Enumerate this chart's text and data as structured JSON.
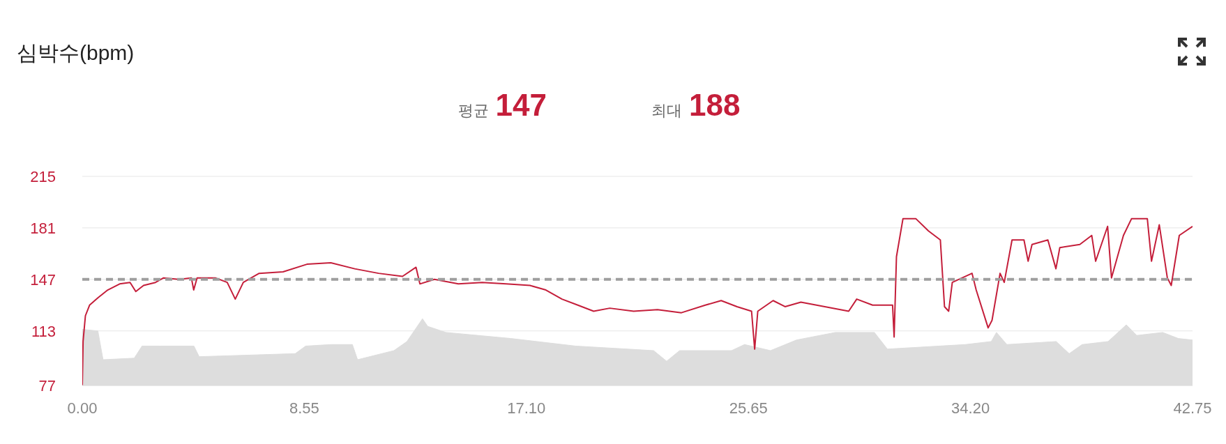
{
  "chart_data": {
    "type": "line",
    "title": "심박수(bpm)",
    "annotations": [
      "평균",
      "147",
      "최대",
      "188"
    ],
    "xlim": [
      0,
      42.75
    ],
    "xticks": [
      {
        "value": 0,
        "label": "0.00"
      },
      8.55,
      {
        "value": 17.1,
        "label": "17.10"
      },
      25.65,
      {
        "value": 34.2,
        "label": "34.20"
      },
      42.75
    ],
    "ylim": [
      77,
      215
    ],
    "yticks": [
      77,
      113,
      147,
      181,
      215
    ],
    "grid": "y",
    "marker": "none",
    "ref_lines": [
      {
        "axis": "y",
        "value": 147,
        "color": "#9e9e9e",
        "line_style": "dashed"
      }
    ],
    "series": [
      {
        "type": "area",
        "color": "#dddddd",
        "x": [
          0,
          0.6,
          0.8,
          2.0,
          2.3,
          3.0,
          4.3,
          4.5,
          8.2,
          8.6,
          9.6,
          10.4,
          10.6,
          12.0,
          12.5,
          13.1,
          13.3,
          14.0,
          16.5,
          19.0,
          21.0,
          22.0,
          22.5,
          23.0,
          25.0,
          25.5,
          26.5,
          27.5,
          29.0,
          30.5,
          31.0,
          34.0,
          35.0,
          35.2,
          35.6,
          37.5,
          38.0,
          38.5,
          39.5,
          40.2,
          40.6,
          41.6,
          42.2,
          42.75
        ],
        "values": [
          114,
          113,
          94,
          95,
          103,
          103,
          103,
          96,
          98,
          103,
          104,
          104,
          94,
          100,
          106,
          121,
          116,
          112,
          108,
          103,
          101,
          100,
          93,
          100,
          100,
          104,
          100,
          107,
          112,
          112,
          101,
          104,
          106,
          112,
          104,
          106,
          98,
          104,
          106,
          117,
          110,
          112,
          108,
          107
        ]
      },
      {
        "color": "#c41e3a",
        "line_style": "solid",
        "x": [
          0,
          0.03,
          0.12,
          0.28,
          0.61,
          0.98,
          1.44,
          1.84,
          2.06,
          2.36,
          2.82,
          3.13,
          3.74,
          4.2,
          4.29,
          4.42,
          5.12,
          5.58,
          5.89,
          6.2,
          6.81,
          7.73,
          8.65,
          9.57,
          10.49,
          11.41,
          12.33,
          12.85,
          13.0,
          13.56,
          14.48,
          15.4,
          16.32,
          17.24,
          17.85,
          18.47,
          19.08,
          19.69,
          20.31,
          21.23,
          22.15,
          23.07,
          23.99,
          24.6,
          25.21,
          25.77,
          25.89,
          26.01,
          26.6,
          27.06,
          27.67,
          28.59,
          29.51,
          29.82,
          30.43,
          31.2,
          31.26,
          31.35,
          31.6,
          32.1,
          32.58,
          33.04,
          33.2,
          33.36,
          33.5,
          34.26,
          34.42,
          34.88,
          35.03,
          35.34,
          35.5,
          35.8,
          36.26,
          36.42,
          36.57,
          37.18,
          37.49,
          37.64,
          38.41,
          38.87,
          39.02,
          39.48,
          39.63,
          40.09,
          40.4,
          41.01,
          41.17,
          41.47,
          41.78,
          41.93,
          42.24,
          42.75
        ],
        "values": [
          77,
          106,
          123,
          130,
          135,
          140,
          144,
          145,
          139,
          143,
          145,
          148,
          147,
          148,
          140,
          148,
          148,
          145,
          134,
          145,
          151,
          152,
          157,
          158,
          154,
          151,
          149,
          155,
          144,
          147,
          144,
          145,
          144,
          143,
          140,
          134,
          130,
          126,
          128,
          126,
          127,
          125,
          130,
          133,
          129,
          126,
          101,
          126,
          133,
          129,
          132,
          129,
          126,
          134,
          130,
          130,
          109,
          162,
          187,
          187,
          179,
          173,
          129,
          126,
          145,
          151,
          140,
          115,
          120,
          151,
          145,
          173,
          173,
          159,
          170,
          173,
          154,
          168,
          170,
          176,
          159,
          182,
          148,
          176,
          187,
          187,
          159,
          183,
          148,
          143,
          176,
          182
        ]
      }
    ]
  }
}
